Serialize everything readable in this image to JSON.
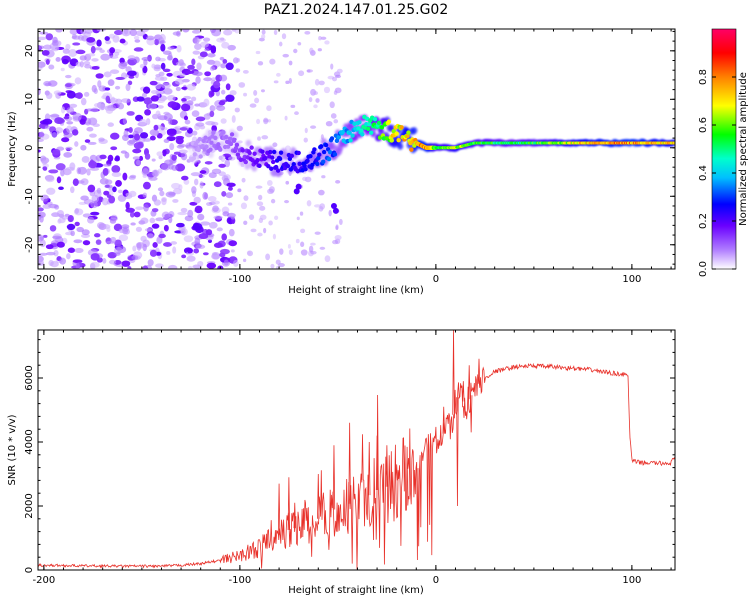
{
  "figure": {
    "title": "PAZ1.2024.147.01.25.G02"
  },
  "chart_data": [
    {
      "type": "heatmap",
      "xlabel": "Height of straight line (km)",
      "ylabel": "Frequency (Hz)",
      "xlim": [
        -203,
        122
      ],
      "ylim": [
        -25,
        24.5
      ],
      "xticks": [
        -200,
        -100,
        0,
        100
      ],
      "yticks": [
        -20,
        -10,
        0,
        10,
        20
      ],
      "colorbar": {
        "label": "Normalized spectral amplitude",
        "range": [
          0,
          1
        ],
        "ticks": [
          "0.0",
          "0.2",
          "0.4",
          "0.6",
          "0.8"
        ],
        "colors": [
          "#ffffff",
          "#7b00ff",
          "#0000ff",
          "#00bfff",
          "#00ffcc",
          "#00ff00",
          "#ffff00",
          "#ff8000",
          "#ff0000",
          "#ff0066"
        ]
      },
      "ridge": {
        "x": [
          -125,
          -115,
          -105,
          -100,
          -90,
          -80,
          -70,
          -60,
          -50,
          -42,
          -35,
          -28,
          -20,
          -10,
          -5,
          0,
          10,
          20,
          40,
          60,
          80,
          100,
          122
        ],
        "frequency": [
          -1,
          1,
          2,
          -1,
          -2,
          -3,
          -3,
          -2,
          1,
          4,
          5,
          4,
          3,
          1,
          0,
          0,
          0,
          1,
          1,
          1,
          1,
          1,
          1
        ],
        "amplitude": [
          0.05,
          0.1,
          0.1,
          0.15,
          0.2,
          0.25,
          0.25,
          0.3,
          0.35,
          0.45,
          0.5,
          0.6,
          0.75,
          0.8,
          0.85,
          0.6,
          0.7,
          0.6,
          0.55,
          0.65,
          0.8,
          0.85,
          0.75
        ]
      },
      "grid": false
    },
    {
      "type": "line",
      "xlabel": "Height of straight line (km)",
      "ylabel": "SNR (10 * v/v)",
      "xlim": [
        -203,
        122
      ],
      "ylim": [
        0,
        7500
      ],
      "xticks": [
        -200,
        -100,
        0,
        100
      ],
      "yticks": [
        0,
        2000,
        4000,
        6000
      ],
      "color": "#e8312a",
      "series": [
        {
          "x": [
            -203,
            -180,
            -160,
            -140,
            -130,
            -120,
            -110,
            -100,
            -90,
            -85,
            -80,
            -75,
            -70,
            -65,
            -60,
            -55,
            -50,
            -45,
            -40,
            -35,
            -30,
            -25,
            -20,
            -15,
            -10,
            -5,
            0,
            5,
            8,
            10,
            12,
            15,
            20,
            25,
            30,
            40,
            50,
            60,
            70,
            80,
            90,
            95,
            98,
            99,
            100,
            105,
            110,
            115,
            120,
            122
          ],
          "y": [
            150,
            130,
            120,
            120,
            150,
            200,
            300,
            450,
            700,
            900,
            1100,
            1250,
            1350,
            1500,
            1600,
            1800,
            1950,
            2050,
            2150,
            2300,
            2500,
            2600,
            2800,
            3100,
            3400,
            3650,
            4100,
            4300,
            4500,
            5200,
            5600,
            5100,
            5700,
            6000,
            6200,
            6350,
            6380,
            6350,
            6300,
            6250,
            6150,
            6120,
            6080,
            4200,
            3400,
            3350,
            3350,
            3330,
            3350,
            3550
          ],
          "spikes": [
            [
              -80,
              2700
            ],
            [
              -75,
              2900
            ],
            [
              -72,
              2100
            ],
            [
              -60,
              3000
            ],
            [
              -52,
              3900
            ],
            [
              -44,
              4600
            ],
            [
              -34,
              4000
            ],
            [
              -30,
              4200
            ],
            [
              -25,
              3900
            ],
            [
              -20,
              3300
            ],
            [
              -14,
              3500
            ],
            [
              4,
              5100
            ],
            [
              9,
              7500
            ],
            [
              14,
              5900
            ],
            [
              17,
              6400
            ],
            [
              22,
              6600
            ],
            [
              11,
              2000
            ],
            [
              18,
              4300
            ]
          ]
        }
      ],
      "grid": false
    }
  ]
}
